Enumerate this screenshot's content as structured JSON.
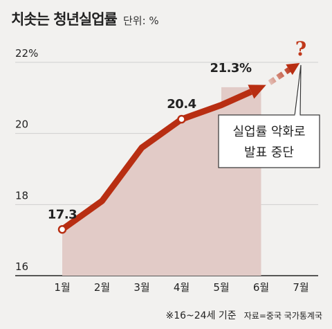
{
  "header": {
    "title": "치솟는 청년실업률",
    "unit": "단위: %"
  },
  "footer": {
    "note": "※16~24세 기준",
    "source": "자료=중국 국가통계국"
  },
  "callout": {
    "lines": [
      "실업률 악화로",
      "발표 중단"
    ]
  },
  "colors": {
    "line": "#b82e12",
    "area": "#e2cbc7",
    "grid": "#cfcfcf",
    "axis": "#222222",
    "background": "#f2f1ef",
    "question": "#c0381a"
  },
  "chart_data": {
    "type": "line",
    "categories": [
      "1월",
      "2월",
      "3월",
      "4월",
      "5월",
      "6월",
      "7월"
    ],
    "series": [
      {
        "values": [
          17.3,
          18.1,
          19.6,
          20.4,
          20.8,
          21.3,
          null
        ]
      }
    ],
    "missing_marker": "?",
    "y_ticks": [
      "16",
      "18",
      "20",
      "22%"
    ],
    "ylim": [
      16,
      22
    ],
    "data_labels": [
      {
        "index": 0,
        "text": "17.3"
      },
      {
        "index": 3,
        "text": "20.4"
      },
      {
        "index": 5,
        "text": "21.3%"
      }
    ],
    "grid": true,
    "area_fill": true
  }
}
